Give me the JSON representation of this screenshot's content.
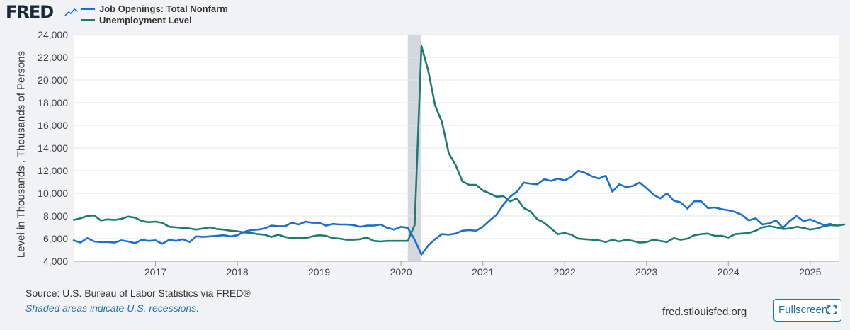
{
  "logo": {
    "text": "FRED",
    "icon": "line-chart-icon"
  },
  "legend": [
    {
      "label": "Job Openings: Total Nonfarm",
      "color": "#1a6ed0"
    },
    {
      "label": "Unemployment Level",
      "color": "#1f7a6e"
    }
  ],
  "yaxis_label": "Level in Thousands , Thousands of Persons",
  "footer": {
    "source": "Source: U.S. Bureau of Labor Statistics via FRED®",
    "shaded": "Shaded areas indicate U.S. recessions.",
    "site": "fred.stlouisfed.org",
    "fullscreen_label": "Fullscreen",
    "fullscreen_icon": "fullscreen-icon"
  },
  "chart_data": {
    "type": "line",
    "title": "",
    "xlabel": "",
    "ylabel": "Level in Thousands , Thousands of Persons",
    "x_start": "2016-01",
    "x_tick_labels": [
      "2017",
      "2018",
      "2019",
      "2020",
      "2021",
      "2022",
      "2023",
      "2024",
      "2025"
    ],
    "y_ticks": [
      "4,000",
      "6,000",
      "8,000",
      "10,000",
      "12,000",
      "14,000",
      "16,000",
      "18,000",
      "20,000",
      "22,000",
      "24,000"
    ],
    "ylim": [
      4000,
      24000
    ],
    "grid": "horizontal",
    "recession_band": {
      "start": "2020-02",
      "end": "2020-04"
    },
    "series": [
      {
        "name": "Job Openings: Total Nonfarm",
        "color": "#1a6ed0",
        "values": [
          5850,
          5650,
          6050,
          5750,
          5700,
          5700,
          5650,
          5850,
          5750,
          5600,
          5900,
          5800,
          5850,
          5550,
          5900,
          5800,
          5950,
          5700,
          6200,
          6150,
          6200,
          6250,
          6300,
          6200,
          6300,
          6600,
          6750,
          6800,
          6900,
          7150,
          7100,
          7100,
          7400,
          7250,
          7500,
          7400,
          7400,
          7150,
          7300,
          7250,
          7250,
          7200,
          7050,
          7150,
          7150,
          7250,
          6950,
          6800,
          7050,
          6950,
          5900,
          4600,
          5400,
          5950,
          6400,
          6350,
          6450,
          6700,
          6750,
          6700,
          7050,
          7600,
          8100,
          9000,
          9700,
          10150,
          10950,
          10850,
          10800,
          11250,
          11100,
          11300,
          11150,
          11450,
          12000,
          11800,
          11500,
          11300,
          11550,
          10150,
          10800,
          10550,
          10650,
          10950,
          10450,
          9900,
          9550,
          10000,
          9350,
          9200,
          8650,
          9300,
          9300,
          8700,
          8750,
          8600,
          8500,
          8350,
          8100,
          7600,
          7800,
          7250,
          7350,
          7600,
          6950,
          7550,
          8000,
          7550,
          7700,
          7450,
          7200,
          7300
        ]
      },
      {
        "name": "Unemployment Level",
        "color": "#1f7a6e",
        "values": [
          7650,
          7800,
          8000,
          8050,
          7600,
          7700,
          7650,
          7750,
          7950,
          7850,
          7550,
          7450,
          7500,
          7400,
          7050,
          7000,
          6950,
          6900,
          6800,
          6900,
          7000,
          6850,
          6800,
          6700,
          6650,
          6550,
          6500,
          6400,
          6350,
          6150,
          6350,
          6150,
          6050,
          6100,
          6050,
          6200,
          6300,
          6250,
          6050,
          6000,
          5900,
          5900,
          5950,
          6100,
          5800,
          5750,
          5800,
          5800,
          5800,
          5800,
          7200,
          23000,
          20800,
          17750,
          16300,
          13550,
          12500,
          11050,
          10750,
          10750,
          10250,
          10000,
          9700,
          9750,
          9300,
          9550,
          8700,
          8400,
          7700,
          7400,
          6900,
          6400,
          6500,
          6350,
          6000,
          5950,
          5900,
          5850,
          5700,
          5900,
          5750,
          5900,
          5800,
          5650,
          5700,
          5900,
          5800,
          5700,
          6050,
          5900,
          6000,
          6300,
          6400,
          6450,
          6250,
          6250,
          6100,
          6400,
          6450,
          6500,
          6700,
          7000,
          7100,
          7000,
          6850,
          6900,
          7050,
          6950,
          6800,
          6900,
          7100,
          7200,
          7150,
          7250
        ]
      }
    ]
  }
}
